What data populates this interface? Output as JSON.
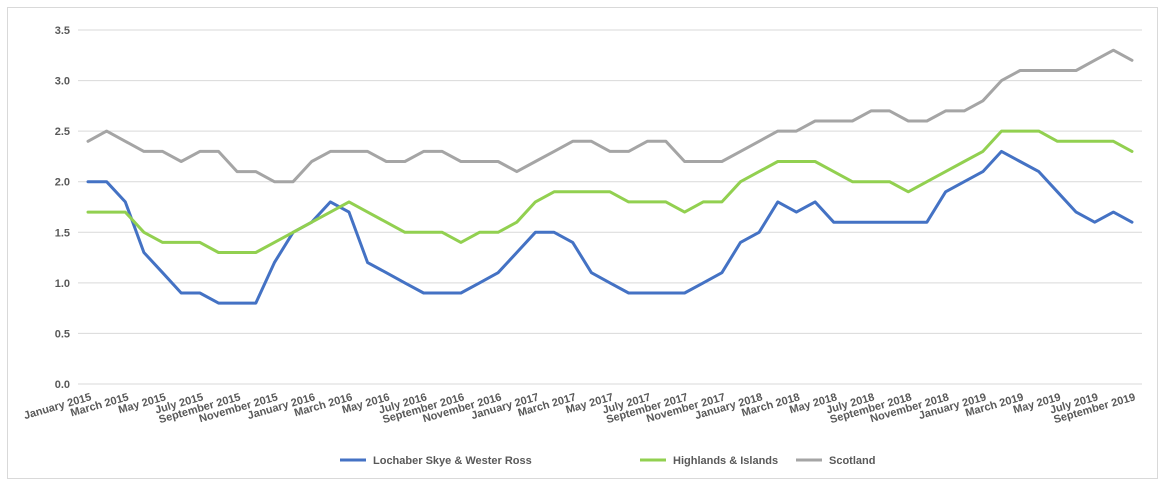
{
  "chart_data": {
    "type": "line",
    "title": "",
    "xlabel": "",
    "ylabel": "",
    "ylim": [
      0,
      3.5
    ],
    "y_ticks": [
      "0.0",
      "0.5",
      "1.0",
      "1.5",
      "2.0",
      "2.5",
      "3.0",
      "3.5"
    ],
    "grid": true,
    "legend_position": "bottom",
    "x_labels": [
      "January 2015",
      "March 2015",
      "May 2015",
      "July 2015",
      "September 2015",
      "November 2015",
      "January 2016",
      "March 2016",
      "May 2016",
      "July 2016",
      "September 2016",
      "November 2016",
      "January 2017",
      "March 2017",
      "May 2017",
      "July 2017",
      "September 2017",
      "November 2017",
      "January 2018",
      "March 2018",
      "May 2018",
      "July 2018",
      "September 2018",
      "November 2018",
      "January 2019",
      "March 2019",
      "May 2019",
      "July 2019",
      "September 2019"
    ],
    "x_label_every": 2,
    "series": [
      {
        "name": "Lochaber Skye & Wester Ross",
        "color": "#4472c4",
        "values": [
          2.0,
          2.0,
          1.8,
          1.3,
          1.1,
          0.9,
          0.9,
          0.8,
          0.8,
          0.8,
          1.2,
          1.5,
          1.6,
          1.8,
          1.7,
          1.2,
          1.1,
          1.0,
          0.9,
          0.9,
          0.9,
          1.0,
          1.1,
          1.3,
          1.5,
          1.5,
          1.4,
          1.1,
          1.0,
          0.9,
          0.9,
          0.9,
          0.9,
          1.0,
          1.1,
          1.4,
          1.5,
          1.8,
          1.7,
          1.8,
          1.6,
          1.6,
          1.6,
          1.6,
          1.6,
          1.6,
          1.9,
          2.0,
          2.1,
          2.3,
          2.2,
          2.1,
          1.9,
          1.7,
          1.6,
          1.7,
          1.6
        ]
      },
      {
        "name": "Highlands & Islands",
        "color": "#92d050",
        "values": [
          1.7,
          1.7,
          1.7,
          1.5,
          1.4,
          1.4,
          1.4,
          1.3,
          1.3,
          1.3,
          1.4,
          1.5,
          1.6,
          1.7,
          1.8,
          1.7,
          1.6,
          1.5,
          1.5,
          1.5,
          1.4,
          1.5,
          1.5,
          1.6,
          1.8,
          1.9,
          1.9,
          1.9,
          1.9,
          1.8,
          1.8,
          1.8,
          1.7,
          1.8,
          1.8,
          2.0,
          2.1,
          2.2,
          2.2,
          2.2,
          2.1,
          2.0,
          2.0,
          2.0,
          1.9,
          2.0,
          2.1,
          2.2,
          2.3,
          2.5,
          2.5,
          2.5,
          2.4,
          2.4,
          2.4,
          2.4,
          2.3
        ]
      },
      {
        "name": "Scotland",
        "color": "#a5a5a5",
        "values": [
          2.4,
          2.5,
          2.4,
          2.3,
          2.3,
          2.2,
          2.3,
          2.3,
          2.1,
          2.1,
          2.0,
          2.0,
          2.2,
          2.3,
          2.3,
          2.3,
          2.2,
          2.2,
          2.3,
          2.3,
          2.2,
          2.2,
          2.2,
          2.1,
          2.2,
          2.3,
          2.4,
          2.4,
          2.3,
          2.3,
          2.4,
          2.4,
          2.2,
          2.2,
          2.2,
          2.3,
          2.4,
          2.5,
          2.5,
          2.6,
          2.6,
          2.6,
          2.7,
          2.7,
          2.6,
          2.6,
          2.7,
          2.7,
          2.8,
          3.0,
          3.1,
          3.1,
          3.1,
          3.1,
          3.2,
          3.3,
          3.2
        ]
      }
    ]
  }
}
